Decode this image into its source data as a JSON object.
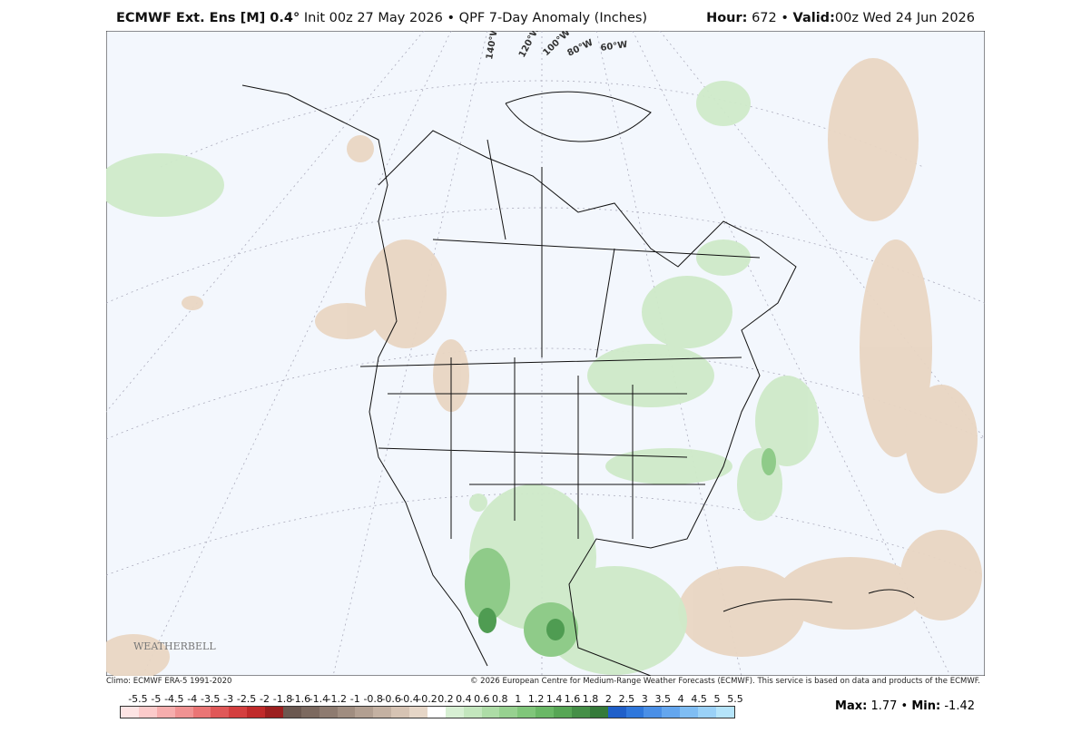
{
  "header": {
    "model": "ECMWF Ext. Ens [M] 0.4°",
    "init": "Init 00z 27 May 2026",
    "separator": "•",
    "product": "QPF 7-Day Anomaly (Inches)",
    "hour_label": "Hour:",
    "hour": 672,
    "valid_label": "Valid:",
    "valid": "00z Wed 24 Jun 2026"
  },
  "map": {
    "longitude_labels": [
      "140°W",
      "120°W",
      "100°W",
      "80°W",
      "60°W"
    ],
    "logo": "WEATHERBELL"
  },
  "footer": {
    "climo": "Climo: ECMWF ERA-5 1991-2020",
    "copyright": "© 2026 European Centre for Medium-Range Weather Forecasts (ECMWF). This service is based on data and products of the ECMWF."
  },
  "colorbar": {
    "labels": [
      -5.5,
      -5,
      -4.5,
      -4,
      -3.5,
      -3,
      -2.5,
      -2,
      -1.8,
      -1.6,
      -1.4,
      -1.2,
      -1,
      -0.8,
      -0.6,
      -0.4,
      -0.2,
      0.2,
      0.4,
      0.6,
      0.8,
      1,
      1.2,
      1.4,
      1.6,
      1.8,
      2,
      2.5,
      3,
      3.5,
      4,
      4.5,
      5,
      5.5
    ],
    "colors": [
      "#fde4e4",
      "#fbcaca",
      "#f6adad",
      "#f09292",
      "#ea7575",
      "#e05858",
      "#d43f3f",
      "#c02a2a",
      "#9c1f1f",
      "#6b5850",
      "#7c695f",
      "#8e7b70",
      "#a08d80",
      "#b29f91",
      "#c4b1a2",
      "#d6c3b3",
      "#e6d6c7",
      "#ffffff",
      "#d7efd3",
      "#c3e6bd",
      "#addca6",
      "#97d190",
      "#80c67a",
      "#6ab866",
      "#57a655",
      "#458f47",
      "#357a3a",
      "#1f5fc9",
      "#2f77db",
      "#4a8fe6",
      "#64a6ee",
      "#7fbdf3",
      "#9ad1f7",
      "#b5e4fa"
    ]
  },
  "stats": {
    "max_label": "Max:",
    "max": 1.77,
    "min_label": "Min:",
    "min": -1.42
  }
}
